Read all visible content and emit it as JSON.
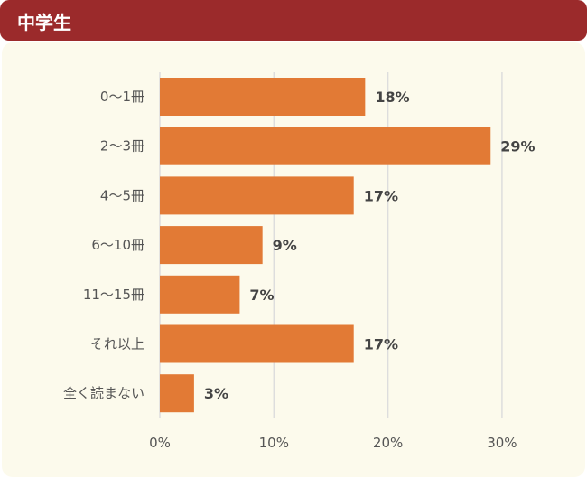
{
  "header": {
    "title": "中学生"
  },
  "colors": {
    "header": "#9B2A2B",
    "bar": "#E27A35",
    "background": "#FCFAEC",
    "grid": "#DDDDDD"
  },
  "chart_data": {
    "type": "bar",
    "orientation": "horizontal",
    "categories": [
      "0〜1冊",
      "2〜3冊",
      "4〜5冊",
      "6〜10冊",
      "11〜15冊",
      "それ以上",
      "全く読まない"
    ],
    "values": [
      18,
      29,
      17,
      9,
      7,
      17,
      3
    ],
    "data_labels": [
      "18%",
      "29%",
      "17%",
      "9%",
      "7%",
      "17%",
      "3%"
    ],
    "xlim": [
      0,
      30
    ],
    "x_ticks": [
      0,
      10,
      20,
      30
    ],
    "x_tick_labels": [
      "0%",
      "10%",
      "20%",
      "30%"
    ],
    "grid": true
  }
}
